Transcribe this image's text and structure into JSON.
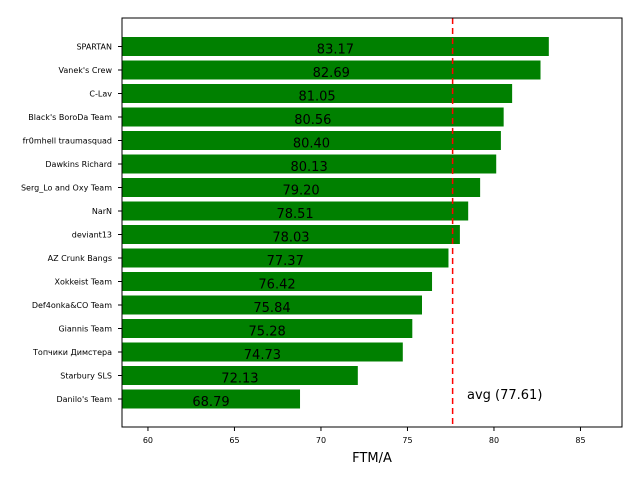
{
  "chart_data": {
    "type": "bar",
    "orientation": "horizontal",
    "categories": [
      "SPARTAN",
      "Vanek's Crew",
      "C-Lav",
      "Black's BoroDa Team",
      "fr0mhell traumasquad",
      "Dawkins Richard",
      "Serg_Lo and Oxy Team",
      "NarN",
      "deviant13",
      "AZ Crunk Bangs",
      "Xokkeist Team",
      "Def4onka&CO Team",
      "Giannis Team",
      "Топчики Димстера",
      "Starbury SLS",
      "Danilo's Team"
    ],
    "values": [
      83.17,
      82.69,
      81.05,
      80.56,
      80.4,
      80.13,
      79.2,
      78.51,
      78.03,
      77.37,
      76.42,
      75.84,
      75.28,
      74.73,
      72.13,
      68.79
    ],
    "value_labels": [
      "83.17",
      "82.69",
      "81.05",
      "80.56",
      "80.40",
      "80.13",
      "79.20",
      "78.51",
      "78.03",
      "77.37",
      "76.42",
      "75.84",
      "75.28",
      "74.73",
      "72.13",
      "68.79"
    ],
    "xlabel": "FTM/A",
    "ylabel": "",
    "title": "",
    "xlim": [
      58.5,
      87.4
    ],
    "xticks": [
      60,
      65,
      70,
      75,
      80,
      85
    ],
    "bar_color": "#008000",
    "average": {
      "value": 77.61,
      "label": "avg (77.61)",
      "color": "#ff0000",
      "style": "dashed"
    },
    "grid": false
  }
}
